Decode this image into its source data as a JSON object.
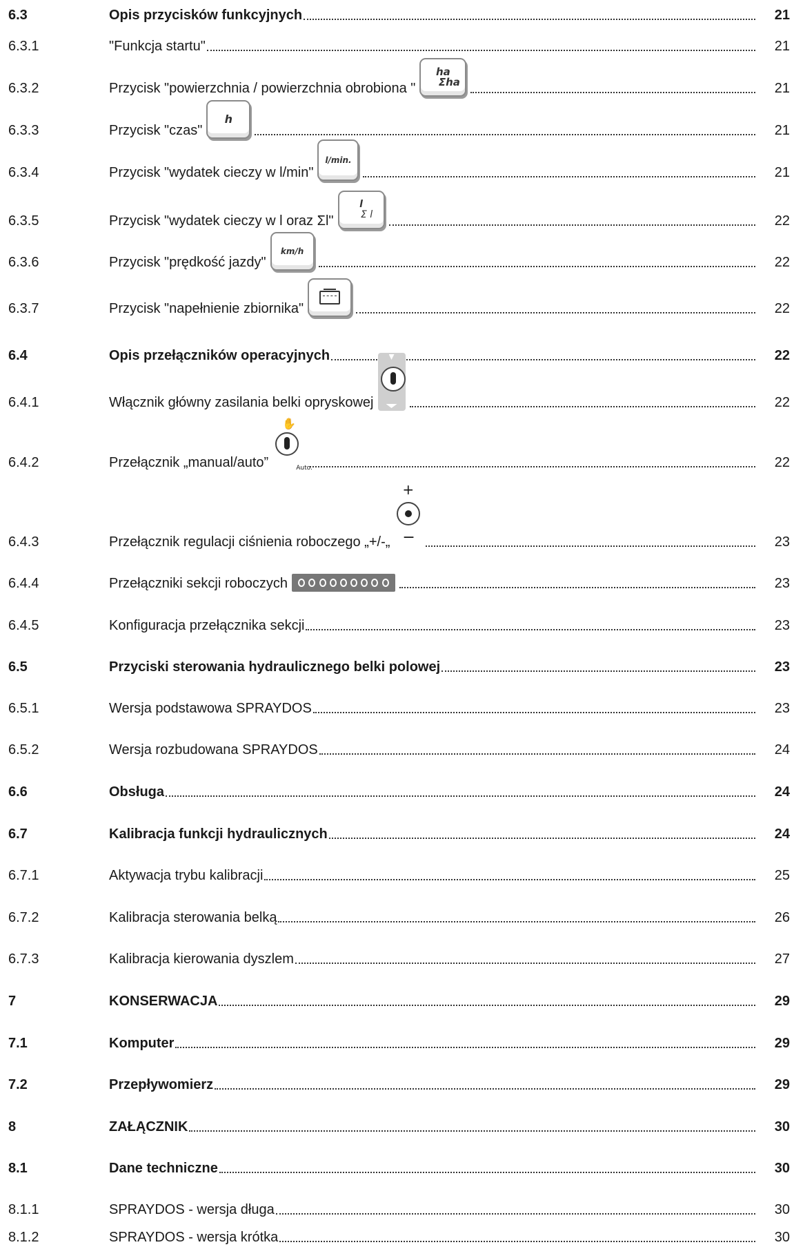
{
  "entries": [
    {
      "num": "6.3",
      "title": "Opis przycisków  funkcyjnych",
      "page": "21",
      "bold": true
    },
    {
      "num": "6.3.1",
      "title": "\"Funkcja startu\"",
      "page": "21",
      "bold": false
    },
    {
      "num": "6.3.2",
      "title": "Przycisk \"powierzchnia  / powierzchnia obrobiona \"",
      "page": "21",
      "bold": false,
      "icon": "ha-sum-ha-key-icon",
      "icon_text": "ha",
      "icon_sub": "Σha"
    },
    {
      "num": "6.3.3",
      "title": "Przycisk \"czas\"",
      "page": "21",
      "bold": false,
      "icon": "h-key-icon",
      "icon_text": "h"
    },
    {
      "num": "6.3.4",
      "title": "Przycisk  \"wydatek cieczy w l/min\"",
      "page": "21",
      "bold": false,
      "icon": "l-min-key-icon",
      "icon_text": "l/min."
    },
    {
      "num": "6.3.5",
      "title": "Przycisk \"wydatek cieczy w l oraz Σl\"",
      "page": "22",
      "bold": false,
      "icon": "l-sum-l-key-icon",
      "icon_text": "l",
      "icon_sub": "Σ l"
    },
    {
      "num": "6.3.6",
      "title": "Przycisk \"prędkość jazdy\"",
      "page": "22",
      "bold": false,
      "icon": "km-h-key-icon",
      "icon_text": "km/h"
    },
    {
      "num": "6.3.7",
      "title": "Przycisk \"napełnienie zbiornika\"",
      "page": "22",
      "bold": false,
      "icon": "tank-fill-key-icon"
    },
    {
      "num": "6.4",
      "title": "Opis przełączników operacyjnych",
      "page": "22",
      "bold": true
    },
    {
      "num": "6.4.1",
      "title": "Włącznik główny zasilania belki opryskowej",
      "page": "22",
      "bold": false,
      "icon": "main-boom-switch-icon"
    },
    {
      "num": "6.4.2",
      "title": "Przełącznik  „manual/auto”",
      "page": "22",
      "bold": false,
      "icon": "manual-auto-switch-icon",
      "icon_text": "Auto."
    },
    {
      "num": "6.4.3",
      "title": "Przełącznik regulacji ciśnienia roboczego „+/-„",
      "page": "23",
      "bold": false,
      "icon": "pressure-switch-icon",
      "icon_text": "+",
      "icon_sub": "−"
    },
    {
      "num": "6.4.4",
      "title": "Przełączniki sekcji roboczych",
      "page": "23",
      "bold": false,
      "icon": "section-switches-icon"
    },
    {
      "num": "6.4.5",
      "title": "Konfiguracja przełącznika sekcji",
      "page": "23",
      "bold": false
    },
    {
      "num": "6.5",
      "title": "Przyciski sterowania hydraulicznego belki polowej",
      "page": "23",
      "bold": true
    },
    {
      "num": "6.5.1",
      "title": "Wersja podstawowa  SPRAYDOS",
      "page": "23",
      "bold": false
    },
    {
      "num": "6.5.2",
      "title": "Wersja rozbudowana  SPRAYDOS",
      "page": "24",
      "bold": false
    },
    {
      "num": "6.6",
      "title": "Obsługa",
      "page": "24",
      "bold": true
    },
    {
      "num": "6.7",
      "title": "Kalibracja funkcji hydraulicznych",
      "page": "24",
      "bold": true
    },
    {
      "num": "6.7.1",
      "title": "Aktywacja trybu kalibracji",
      "page": "25",
      "bold": false
    },
    {
      "num": "6.7.2",
      "title": "Kalibracja sterowania belką",
      "page": "26",
      "bold": false
    },
    {
      "num": "6.7.3",
      "title": "Kalibracja kierowania dyszlem",
      "page": "27",
      "bold": false
    },
    {
      "num": "7",
      "title": "KONSERWACJA",
      "page": "29",
      "bold": true
    },
    {
      "num": "7.1",
      "title": "Komputer",
      "page": "29",
      "bold": true
    },
    {
      "num": "7.2",
      "title": "Przepływomierz",
      "page": "29",
      "bold": true
    },
    {
      "num": "8",
      "title": "ZAŁĄCZNIK",
      "page": "30",
      "bold": true
    },
    {
      "num": "8.1",
      "title": "Dane techniczne",
      "page": "30",
      "bold": true
    },
    {
      "num": "8.1.1",
      "title": "SPRAYDOS - wersja długa",
      "page": "30",
      "bold": false
    },
    {
      "num": "8.1.2",
      "title": "SPRAYDOS - wersja krótka",
      "page": "30",
      "bold": false
    }
  ]
}
